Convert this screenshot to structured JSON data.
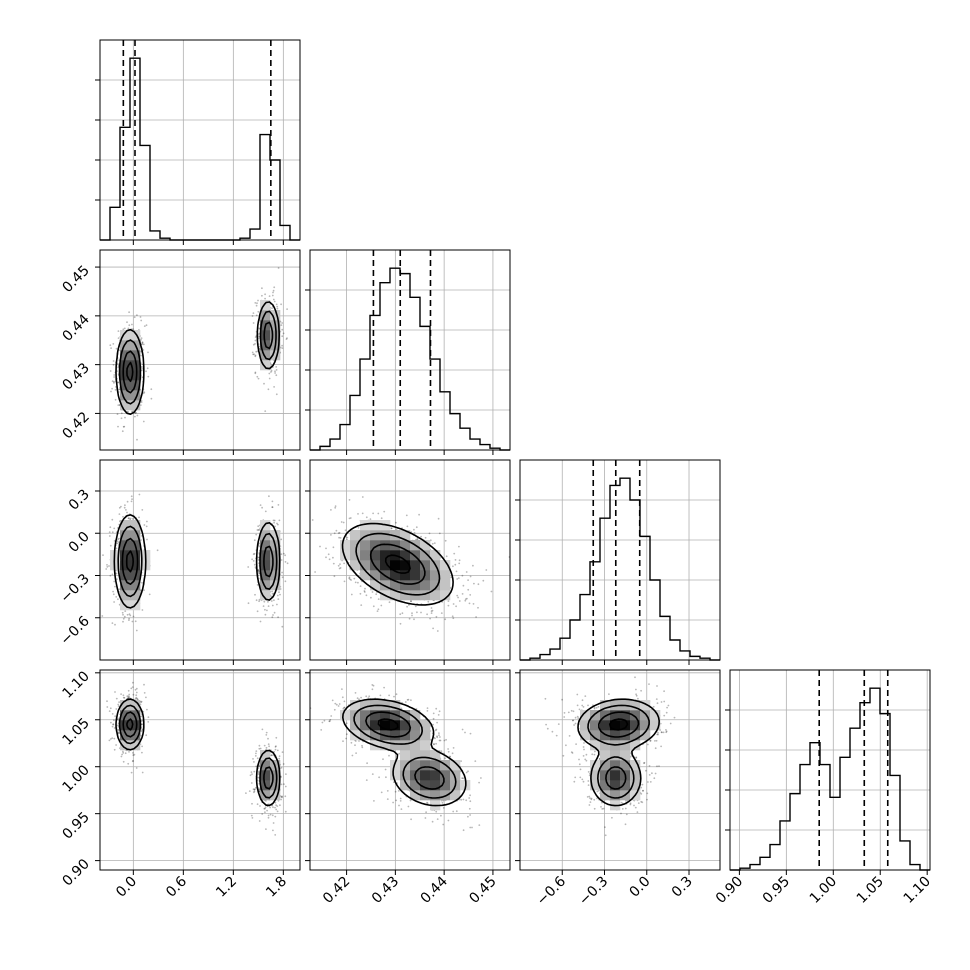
{
  "chart_data": {
    "type": "corner",
    "parameters": [
      {
        "ticks": [
          0.0,
          0.6,
          1.2,
          1.8
        ],
        "tick_labels": [
          "0.0",
          "0.6",
          "1.2",
          "1.8"
        ],
        "range": [
          -0.4,
          2.0
        ],
        "quantiles": [
          -0.12,
          0.02,
          1.65
        ],
        "histogram": {
          "edges": [
            -0.4,
            -0.28,
            -0.16,
            -0.04,
            0.08,
            0.2,
            0.32,
            0.44,
            0.56,
            0.68,
            0.8,
            0.92,
            1.04,
            1.16,
            1.28,
            1.4,
            1.52,
            1.64,
            1.76,
            1.88,
            2.0
          ],
          "counts": [
            0,
            0.18,
            0.62,
            1.0,
            0.52,
            0.05,
            0.01,
            0,
            0,
            0,
            0,
            0,
            0,
            0,
            0.01,
            0.06,
            0.58,
            0.44,
            0.08,
            0
          ]
        }
      },
      {
        "ticks": [
          0.42,
          0.43,
          0.44,
          0.45
        ],
        "tick_labels": [
          "0.42",
          "0.43",
          "0.44",
          "0.45"
        ],
        "range": [
          0.4125,
          0.4535
        ],
        "quantiles": [
          0.4255,
          0.431,
          0.4372
        ],
        "histogram": {
          "edges": [
            0.4125,
            0.41455,
            0.4166,
            0.41865,
            0.4207,
            0.42275,
            0.4248,
            0.42685,
            0.4289,
            0.43095,
            0.433,
            0.43505,
            0.4371,
            0.43915,
            0.4412,
            0.44325,
            0.4453,
            0.44735,
            0.4494,
            0.45145,
            0.4535
          ],
          "counts": [
            0,
            0.02,
            0.06,
            0.14,
            0.3,
            0.5,
            0.74,
            0.92,
            1.0,
            0.97,
            0.84,
            0.68,
            0.5,
            0.32,
            0.2,
            0.12,
            0.06,
            0.03,
            0.01,
            0
          ]
        }
      },
      {
        "ticks": [
          -0.6,
          -0.3,
          0.0,
          0.3
        ],
        "tick_labels": [
          "−0.6",
          "−0.3",
          "0.0",
          "0.3"
        ],
        "range": [
          -0.9,
          0.52
        ],
        "quantiles": [
          -0.38,
          -0.22,
          -0.05
        ],
        "histogram": {
          "edges": [
            -0.9,
            -0.829,
            -0.758,
            -0.687,
            -0.616,
            -0.545,
            -0.474,
            -0.403,
            -0.332,
            -0.261,
            -0.19,
            -0.119,
            -0.048,
            0.023,
            0.094,
            0.165,
            0.236,
            0.307,
            0.378,
            0.449,
            0.52
          ],
          "counts": [
            0,
            0.01,
            0.03,
            0.06,
            0.12,
            0.22,
            0.36,
            0.54,
            0.78,
            0.96,
            1.0,
            0.88,
            0.68,
            0.44,
            0.24,
            0.11,
            0.05,
            0.02,
            0.01,
            0
          ]
        }
      },
      {
        "ticks": [
          0.9,
          0.95,
          1.0,
          1.05,
          1.1
        ],
        "tick_labels": [
          "0.90",
          "0.95",
          "1.00",
          "1.05",
          "1.10"
        ],
        "range": [
          0.89,
          1.103
        ],
        "quantiles": [
          0.985,
          1.033,
          1.058
        ],
        "histogram": {
          "edges": [
            0.89,
            0.90065,
            0.9113,
            0.92195,
            0.9326,
            0.94325,
            0.9539,
            0.96455,
            0.9752,
            0.98585,
            0.9965,
            1.00715,
            1.0178,
            1.02845,
            1.0391,
            1.04975,
            1.0604,
            1.07105,
            1.0817,
            1.09235,
            1.103
          ],
          "counts": [
            0,
            0.01,
            0.03,
            0.07,
            0.14,
            0.27,
            0.42,
            0.58,
            0.7,
            0.58,
            0.4,
            0.62,
            0.78,
            0.92,
            1.0,
            0.86,
            0.52,
            0.16,
            0.03,
            0
          ]
        }
      }
    ],
    "pairs": [
      {
        "row": 1,
        "col": 0,
        "modes": [
          {
            "center": [
              -0.04,
              0.4285
            ],
            "sigma": [
              0.08,
              0.0042
            ],
            "rho": 0.0,
            "weight": 0.55
          },
          {
            "center": [
              1.62,
              0.436
            ],
            "sigma": [
              0.065,
              0.0035
            ],
            "rho": 0.0,
            "weight": 0.45
          }
        ]
      },
      {
        "row": 2,
        "col": 0,
        "modes": [
          {
            "center": [
              -0.04,
              -0.2
            ],
            "sigma": [
              0.09,
              0.16
            ],
            "rho": 0.0,
            "weight": 0.55
          },
          {
            "center": [
              1.62,
              -0.2
            ],
            "sigma": [
              0.07,
              0.14
            ],
            "rho": 0.0,
            "weight": 0.45
          }
        ]
      },
      {
        "row": 2,
        "col": 1,
        "modes": [
          {
            "center": [
              0.4305,
              -0.22
            ],
            "sigma": [
              0.0055,
              0.14
            ],
            "rho": -0.45,
            "weight": 1.0
          }
        ]
      },
      {
        "row": 3,
        "col": 0,
        "modes": [
          {
            "center": [
              -0.04,
              1.045
            ],
            "sigma": [
              0.08,
              0.013
            ],
            "rho": 0.0,
            "weight": 0.55
          },
          {
            "center": [
              1.62,
              0.988
            ],
            "sigma": [
              0.07,
              0.015
            ],
            "rho": 0.0,
            "weight": 0.45
          }
        ]
      },
      {
        "row": 3,
        "col": 1,
        "modes": [
          {
            "center": [
              0.4285,
              1.045
            ],
            "sigma": [
              0.0045,
              0.013
            ],
            "rho": -0.3,
            "weight": 0.55
          },
          {
            "center": [
              0.437,
              0.988
            ],
            "sigma": [
              0.0038,
              0.015
            ],
            "rho": -0.2,
            "weight": 0.45
          }
        ]
      },
      {
        "row": 3,
        "col": 2,
        "modes": [
          {
            "center": [
              -0.2,
              1.045
            ],
            "sigma": [
              0.14,
              0.013
            ],
            "rho": 0.1,
            "weight": 0.55
          },
          {
            "center": [
              -0.22,
              0.988
            ],
            "sigma": [
              0.09,
              0.015
            ],
            "rho": 0.0,
            "weight": 0.45
          }
        ]
      }
    ],
    "contour_levels": [
      0.12,
      0.3,
      0.6,
      0.9
    ],
    "colors": {
      "line": "#000000",
      "grid": "#b0b0b0",
      "point": "#000000",
      "fill_low": "#f2f2f2",
      "fill_high": "#000000"
    },
    "grid": true,
    "labels": {
      "title": "",
      "axis_labels": []
    }
  }
}
